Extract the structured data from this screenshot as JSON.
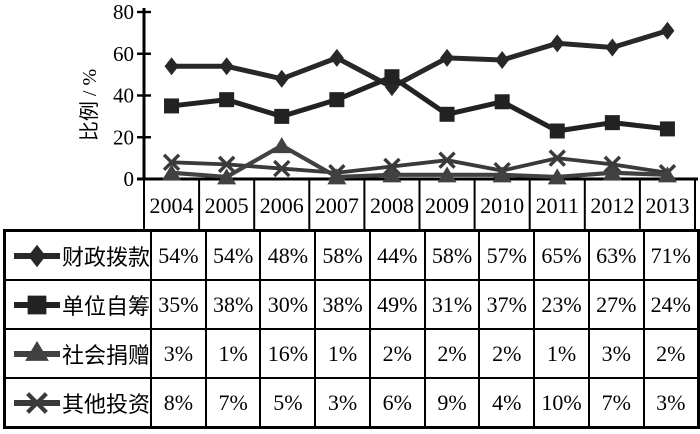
{
  "chart_data": {
    "type": "line",
    "title": "",
    "xlabel": "",
    "ylabel": "比例 / %",
    "ylim": [
      0,
      80
    ],
    "yticks": [
      0,
      20,
      40,
      60,
      80
    ],
    "grid": false,
    "legend_position": "table-first-column",
    "categories": [
      "2004",
      "2005",
      "2006",
      "2007",
      "2008",
      "2009",
      "2010",
      "2011",
      "2012",
      "2013"
    ],
    "series": [
      {
        "id": "fiscal-grant",
        "name": "财政拨款",
        "marker": "diamond",
        "color": "#282828",
        "line_width": 5,
        "values": [
          54,
          54,
          48,
          58,
          44,
          58,
          57,
          65,
          63,
          71
        ]
      },
      {
        "id": "self-raised",
        "name": "单位自筹",
        "marker": "square",
        "color": "#222222",
        "line_width": 5,
        "values": [
          35,
          38,
          30,
          38,
          49,
          31,
          37,
          23,
          27,
          24
        ]
      },
      {
        "id": "social-donation",
        "name": "社会捐赠",
        "marker": "triangle",
        "color": "#414141",
        "line_width": 4.2,
        "values": [
          3,
          1,
          16,
          1,
          2,
          2,
          2,
          1,
          3,
          2
        ]
      },
      {
        "id": "other-investment",
        "name": "其他投资",
        "marker": "x",
        "color": "#3a3a3a",
        "line_width": 3.8,
        "values": [
          8,
          7,
          5,
          3,
          6,
          9,
          4,
          10,
          7,
          3
        ]
      }
    ]
  },
  "table": {
    "year_header": [
      "2004",
      "2005",
      "2006",
      "2007",
      "2008",
      "2009",
      "2010",
      "2011",
      "2012",
      "2013"
    ],
    "rows": [
      {
        "id": "fiscal-grant",
        "label": "财政拨款",
        "marker": "diamond",
        "cells": [
          "54%",
          "54%",
          "48%",
          "58%",
          "44%",
          "58%",
          "57%",
          "65%",
          "63%",
          "71%"
        ]
      },
      {
        "id": "self-raised",
        "label": "单位自筹",
        "marker": "square",
        "cells": [
          "35%",
          "38%",
          "30%",
          "38%",
          "49%",
          "31%",
          "37%",
          "23%",
          "27%",
          "24%"
        ]
      },
      {
        "id": "social-donation",
        "label": "社会捐赠",
        "marker": "triangle",
        "cells": [
          "3%",
          "1%",
          "16%",
          "1%",
          "2%",
          "2%",
          "2%",
          "1%",
          "3%",
          "2%"
        ]
      },
      {
        "id": "other-investment",
        "label": "其他投资",
        "marker": "x",
        "cells": [
          "8%",
          "7%",
          "5%",
          "3%",
          "6%",
          "9%",
          "4%",
          "10%",
          "7%",
          "3%"
        ]
      }
    ]
  },
  "colors": {
    "axis": "#000000",
    "table_border": "#000000",
    "text": "#000000",
    "background": "#ffffff"
  }
}
